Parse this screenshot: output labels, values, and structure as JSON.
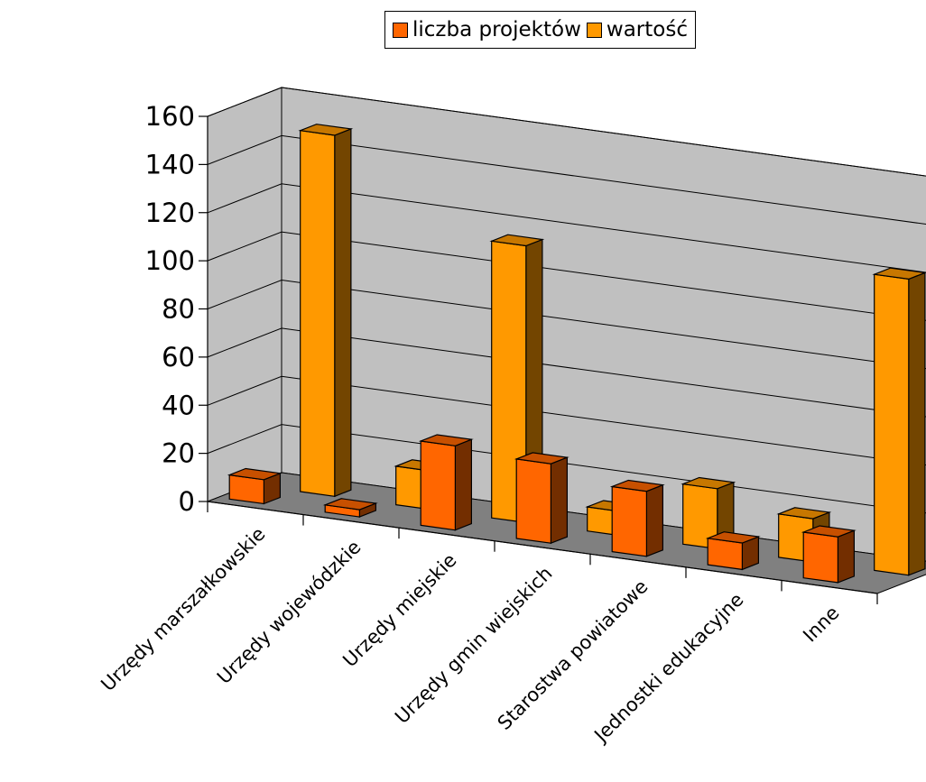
{
  "chart_data": {
    "type": "bar",
    "variant": "3d-clustered",
    "title": "",
    "xlabel": "",
    "ylabel": "",
    "ylim": [
      0,
      160
    ],
    "yticks": [
      0,
      20,
      40,
      60,
      80,
      100,
      120,
      140,
      160
    ],
    "grid": true,
    "legend_position": "top-center",
    "categories": [
      "Urzędy marszałkowskie",
      "Urzędy wojewódzkie",
      "Urzędy miejskie",
      "Urzędy gmin wiejskich",
      "Starostwa powiatowe",
      "Jednostki edukacyjne",
      "Inne"
    ],
    "series": [
      {
        "name": "liczba projektów",
        "color": "#FF6600",
        "values": [
          10,
          3,
          35,
          33,
          27,
          11,
          19
        ]
      },
      {
        "name": "wartość",
        "color": "#FF9900",
        "values": [
          150,
          16,
          115,
          10,
          25,
          18,
          123
        ]
      }
    ]
  }
}
